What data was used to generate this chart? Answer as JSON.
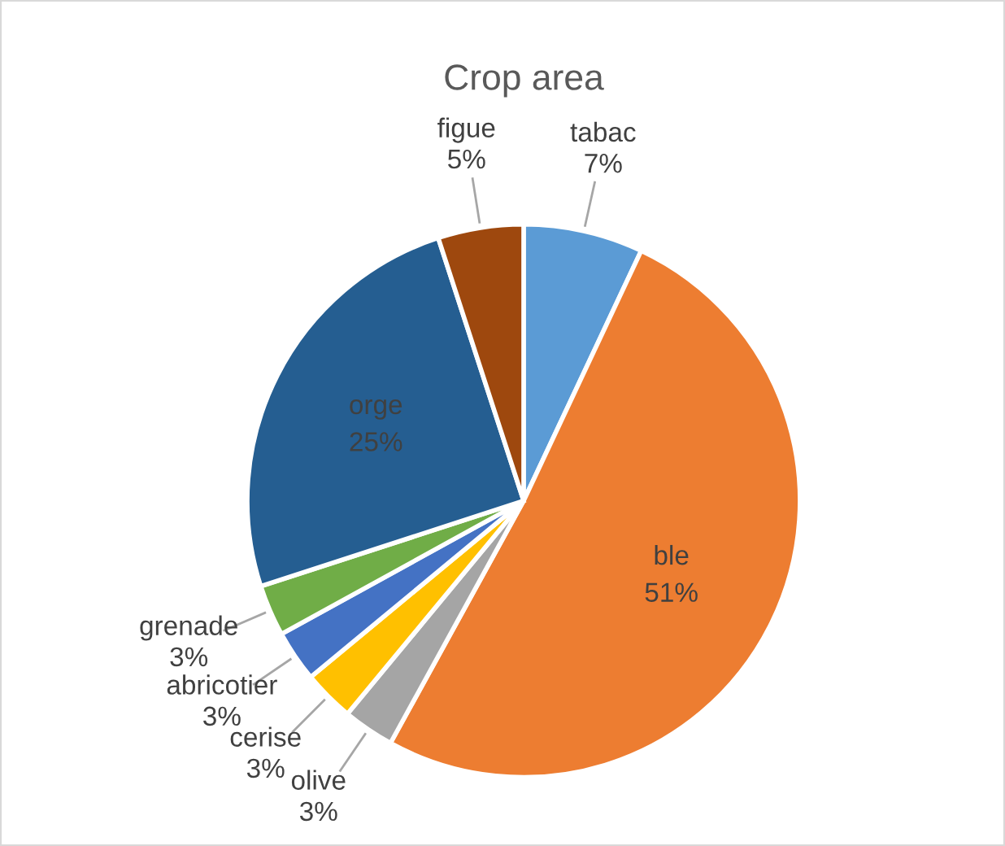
{
  "chart_data": {
    "type": "pie",
    "title": "Crop area",
    "categories": [
      "tabac",
      "ble",
      "olive",
      "cerise",
      "abricotier",
      "grenade",
      "orge",
      "figue"
    ],
    "values": [
      7,
      51,
      3,
      3,
      3,
      3,
      25,
      5
    ],
    "colors": [
      "#5b9bd5",
      "#ed7d31",
      "#a5a5a5",
      "#ffc000",
      "#4472c4",
      "#70ad47",
      "#255e91",
      "#9e480e"
    ],
    "value_labels": [
      "7%",
      "51%",
      "3%",
      "3%",
      "3%",
      "3%",
      "25%",
      "5%"
    ],
    "legend": false
  }
}
